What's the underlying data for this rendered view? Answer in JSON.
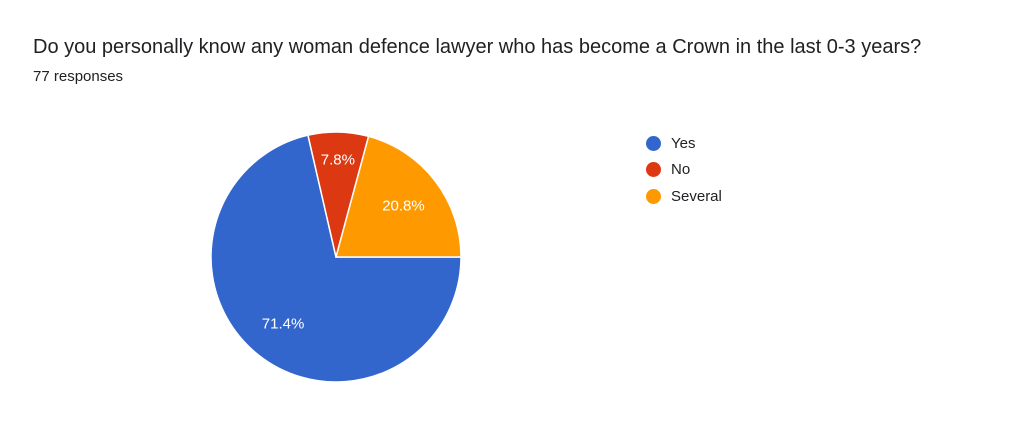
{
  "chart_data": {
    "type": "pie",
    "title": "Do you personally know any woman defence lawyer who has become a Crown in the last 0-3 years?",
    "subtitle": "77 responses",
    "categories": [
      "Yes",
      "No",
      "Several"
    ],
    "values": [
      71.4,
      7.8,
      20.8
    ],
    "labels": [
      "71.4%",
      "7.8%",
      "20.8%"
    ],
    "colors": [
      "#3366cc",
      "#dc3912",
      "#ff9900"
    ],
    "legend_position": "right"
  }
}
